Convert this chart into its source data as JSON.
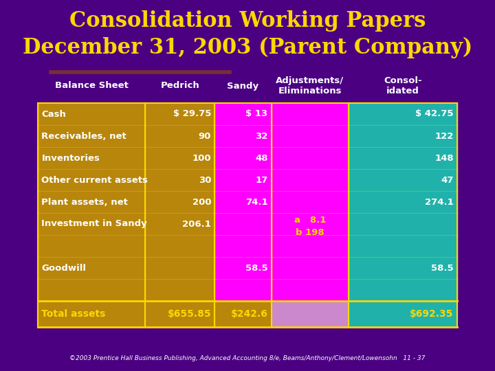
{
  "title": "Consolidation Working Papers\nDecember 31, 2003 (Parent Company)",
  "title_color": "#FFD700",
  "bg_color": "#4B0082",
  "header_row": [
    "Balance Sheet",
    "Pedrich",
    "Sandy",
    "Adjustments/\nEliminations",
    "Consol-\nidated"
  ],
  "rows": [
    [
      "Cash",
      "$ 29.75",
      "$ 13",
      "",
      "$ 42.75"
    ],
    [
      "Receivables, net",
      "90",
      "32",
      "",
      "122"
    ],
    [
      "Inventories",
      "100",
      "48",
      "",
      "148"
    ],
    [
      "Other current assets",
      "30",
      "17",
      "",
      "47"
    ],
    [
      "Plant assets, net",
      "200",
      "74.1",
      "",
      "274.1"
    ],
    [
      "Investment in Sandy",
      "206.1",
      "",
      "a   8.1\nb 198",
      ""
    ],
    [
      "",
      "",
      "",
      "",
      ""
    ],
    [
      "Goodwill",
      "",
      "58.5",
      "",
      "58.5"
    ],
    [
      "",
      "",
      "",
      "",
      ""
    ]
  ],
  "total_row": [
    "Total assets",
    "$655.85",
    "$242.6",
    "",
    "$692.35"
  ],
  "col1_bg": "#B8860B",
  "col2_bg": "#B8860B",
  "col3_bg": "#FF00FF",
  "col4_bg": "#FF00FF",
  "col5_bg": "#20B2AA",
  "total_bg": "#B8860B",
  "total_col3_bg": "#CC88CC",
  "total_col5_bg": "#20B2AA",
  "text_color": "#FFFFFF",
  "yellow_text": "#FFD700",
  "footer": "©2003 Prentice Hall Business Publishing, Advanced Accounting 8/e, Beams/Anthony/Clement/Lowensohn   11 - 37",
  "border_color": "#FFD700"
}
